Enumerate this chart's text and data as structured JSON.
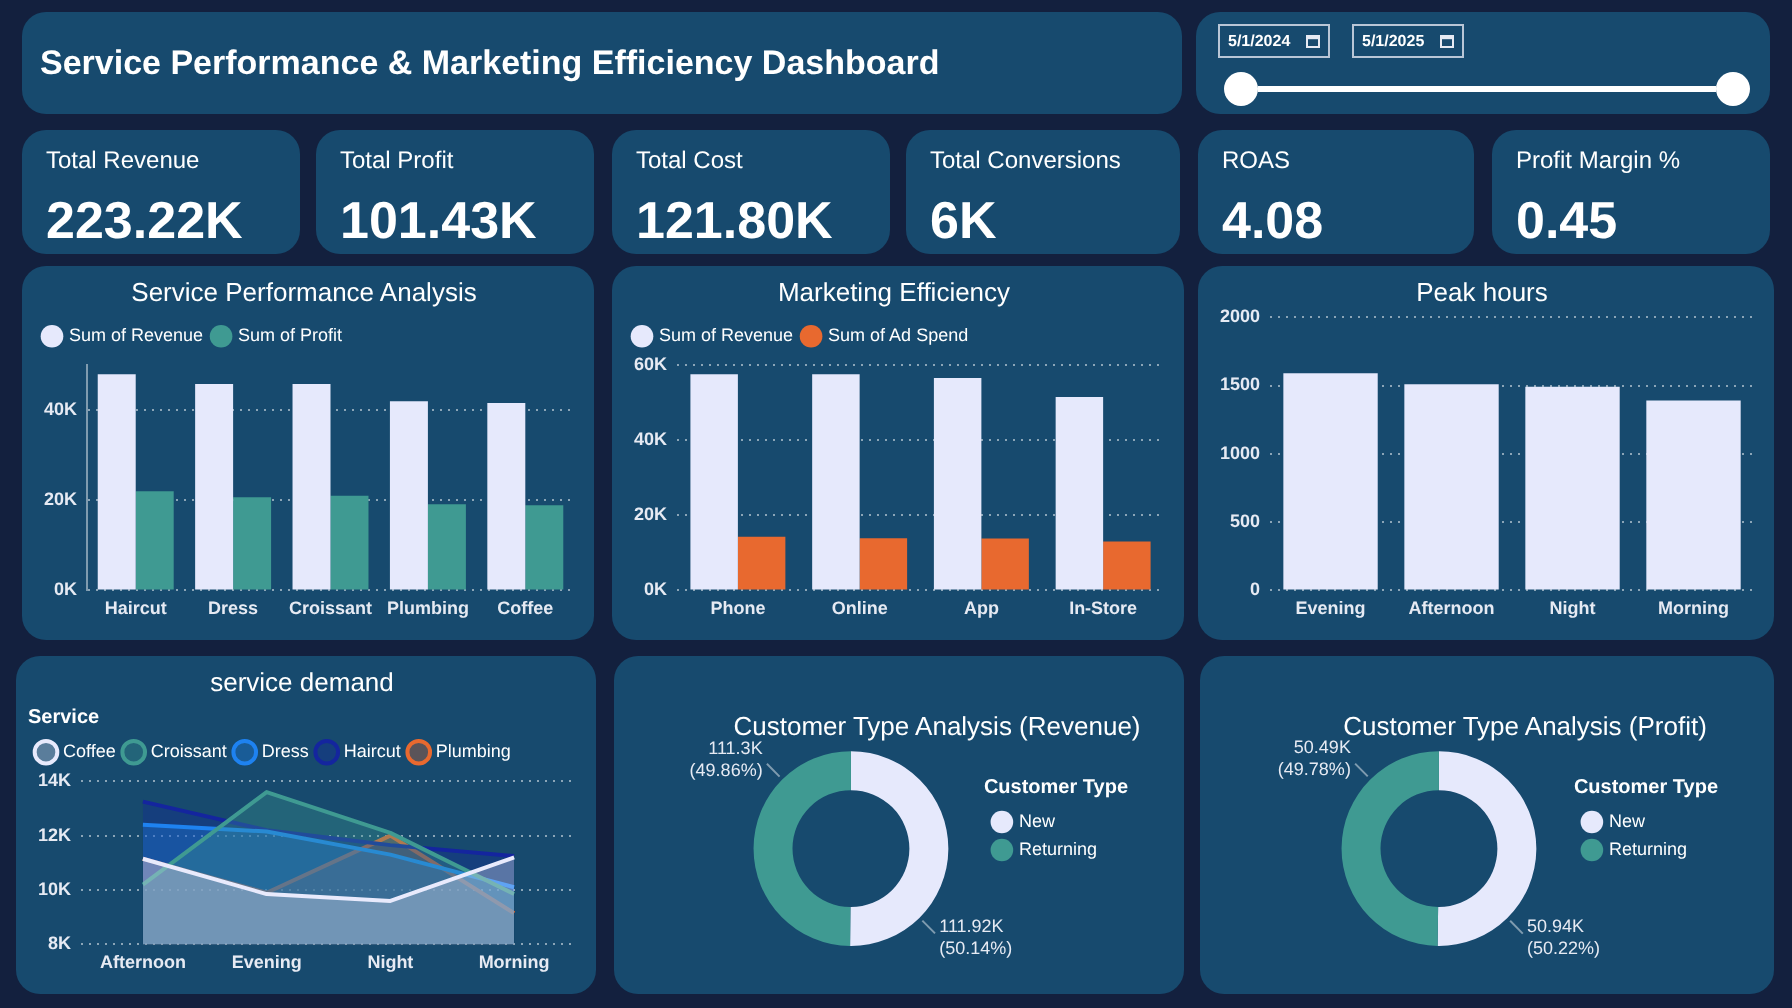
{
  "chart_data": [
    {
      "type": "other",
      "title": "Service Performance & Marketing Efficiency Dashboard"
    },
    {
      "type": "other",
      "annotations": [
        "5/1/2024",
        "5/1/2025"
      ]
    },
    {
      "type": "other",
      "title": "Total Revenue",
      "annotations": [
        "223.22K"
      ]
    },
    {
      "type": "other",
      "title": "Total Profit",
      "annotations": [
        "101.43K"
      ]
    },
    {
      "type": "other",
      "title": "Total Cost",
      "annotations": [
        "121.80K"
      ]
    },
    {
      "type": "other",
      "title": "Total Conversions",
      "annotations": [
        "6K"
      ]
    },
    {
      "type": "other",
      "title": "ROAS",
      "annotations": [
        "4.08"
      ]
    },
    {
      "type": "other",
      "title": "Profit Margin %",
      "annotations": [
        "0.45"
      ]
    },
    {
      "type": "bar",
      "title": "Service Performance Analysis",
      "categories": [
        "Haircut",
        "Dress",
        "Croissant",
        "Plumbing",
        "Coffee"
      ],
      "series": [
        {
          "name": "Sum of Revenue",
          "color": "#e6e9fc",
          "values": [
            48000,
            45800,
            45800,
            42000,
            41600
          ]
        },
        {
          "name": "Sum of Profit",
          "color": "#3f9a92",
          "values": [
            22000,
            20700,
            21000,
            19100,
            18900
          ]
        }
      ],
      "ylim": [
        0,
        50000
      ],
      "yticks": [
        {
          "value": 0,
          "label": "0K"
        },
        {
          "value": 20000,
          "label": "20K"
        },
        {
          "value": 40000,
          "label": "40K"
        }
      ],
      "grid": "y",
      "legend": "top left"
    },
    {
      "type": "bar",
      "title": "Marketing Efficiency",
      "categories": [
        "Phone",
        "Online",
        "App",
        "In-Store"
      ],
      "series": [
        {
          "name": "Sum of Revenue",
          "color": "#e6e9fc",
          "values": [
            57600,
            57600,
            56600,
            51500
          ]
        },
        {
          "name": "Sum of Ad Spend",
          "color": "#e8692f",
          "values": [
            14300,
            13900,
            13800,
            13000
          ]
        }
      ],
      "ylim": [
        0,
        60000
      ],
      "yticks": [
        {
          "value": 0,
          "label": "0K"
        },
        {
          "value": 20000,
          "label": "20K"
        },
        {
          "value": 40000,
          "label": "40K"
        },
        {
          "value": 60000,
          "label": "60K"
        }
      ],
      "grid": "y",
      "legend": "top left"
    },
    {
      "type": "bar",
      "title": "Peak hours",
      "categories": [
        "Evening",
        "Afternoon",
        "Night",
        "Morning"
      ],
      "values": [
        1590,
        1510,
        1490,
        1390
      ],
      "color": "#e6e9fc",
      "ylim": [
        0,
        2000
      ],
      "yticks": [
        0,
        500,
        1000,
        1500,
        2000
      ],
      "grid": "y"
    },
    {
      "type": "area",
      "title": "service demand",
      "categories": [
        "Afternoon",
        "Evening",
        "Night",
        "Morning"
      ],
      "series": [
        {
          "name": "Coffee",
          "color": "#e8eafc",
          "values": [
            11150,
            9850,
            9600,
            11200
          ]
        },
        {
          "name": "Croissant",
          "color": "#3f9a92",
          "values": [
            10200,
            13600,
            12100,
            9850
          ]
        },
        {
          "name": "Dress",
          "color": "#1e82f0",
          "values": [
            12400,
            12150,
            11300,
            10100
          ]
        },
        {
          "name": "Haircut",
          "color": "#14259e",
          "values": [
            13250,
            12200,
            11650,
            11250
          ]
        },
        {
          "name": "Plumbing",
          "color": "#e8692f",
          "values": [
            11150,
            9900,
            12000,
            9150
          ]
        }
      ],
      "ylim": [
        8000,
        14000
      ],
      "yticks": [
        {
          "value": 8000,
          "label": "8K"
        },
        {
          "value": 10000,
          "label": "10K"
        },
        {
          "value": 12000,
          "label": "12K"
        },
        {
          "value": 14000,
          "label": "14K"
        }
      ],
      "grid": "y",
      "legend": "top left",
      "legend_title": "Service"
    },
    {
      "type": "donut",
      "title": "Customer Type Analysis (Revenue)",
      "categories": [
        "New",
        "Returning"
      ],
      "values": [
        111920,
        111300
      ],
      "colors": [
        "#e6e9fc",
        "#3f9a92"
      ],
      "value_labels": [
        "111.92K (50.14%)",
        "111.3K (49.86%)"
      ],
      "legend": "right",
      "legend_title": "Customer Type"
    },
    {
      "type": "donut",
      "title": "Customer Type Analysis (Profit)",
      "categories": [
        "New",
        "Returning"
      ],
      "values": [
        50940,
        50490
      ],
      "colors": [
        "#e6e9fc",
        "#3f9a92"
      ],
      "value_labels": [
        "50.94K (50.22%)",
        "50.49K (49.78%)"
      ],
      "legend": "right",
      "legend_title": "Customer Type"
    }
  ]
}
